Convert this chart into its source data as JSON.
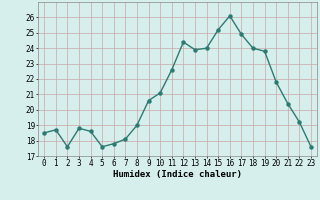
{
  "x": [
    0,
    1,
    2,
    3,
    4,
    5,
    6,
    7,
    8,
    9,
    10,
    11,
    12,
    13,
    14,
    15,
    16,
    17,
    18,
    19,
    20,
    21,
    22,
    23
  ],
  "y": [
    18.5,
    18.7,
    17.6,
    18.8,
    18.6,
    17.6,
    17.8,
    18.1,
    19.0,
    20.6,
    21.1,
    22.6,
    24.4,
    23.9,
    24.0,
    25.2,
    26.1,
    24.9,
    24.0,
    23.8,
    21.8,
    20.4,
    19.2,
    17.6
  ],
  "line_color": "#2d7a72",
  "marker": "o",
  "markersize": 2.2,
  "linewidth": 1.0,
  "bg_color": "#d6efed",
  "grid_color_minor": "#c8a8a8",
  "grid_color_major": "#b89898",
  "xlabel": "Humidex (Indice chaleur)",
  "ylim": [
    17,
    27
  ],
  "xlim": [
    -0.5,
    23.5
  ],
  "yticks": [
    17,
    18,
    19,
    20,
    21,
    22,
    23,
    24,
    25,
    26
  ],
  "xtick_labels": [
    "0",
    "1",
    "2",
    "3",
    "4",
    "5",
    "6",
    "7",
    "8",
    "9",
    "10",
    "11",
    "12",
    "13",
    "14",
    "15",
    "16",
    "17",
    "18",
    "19",
    "20",
    "21",
    "22",
    "23"
  ],
  "label_fontsize": 6.5,
  "tick_fontsize": 5.5
}
